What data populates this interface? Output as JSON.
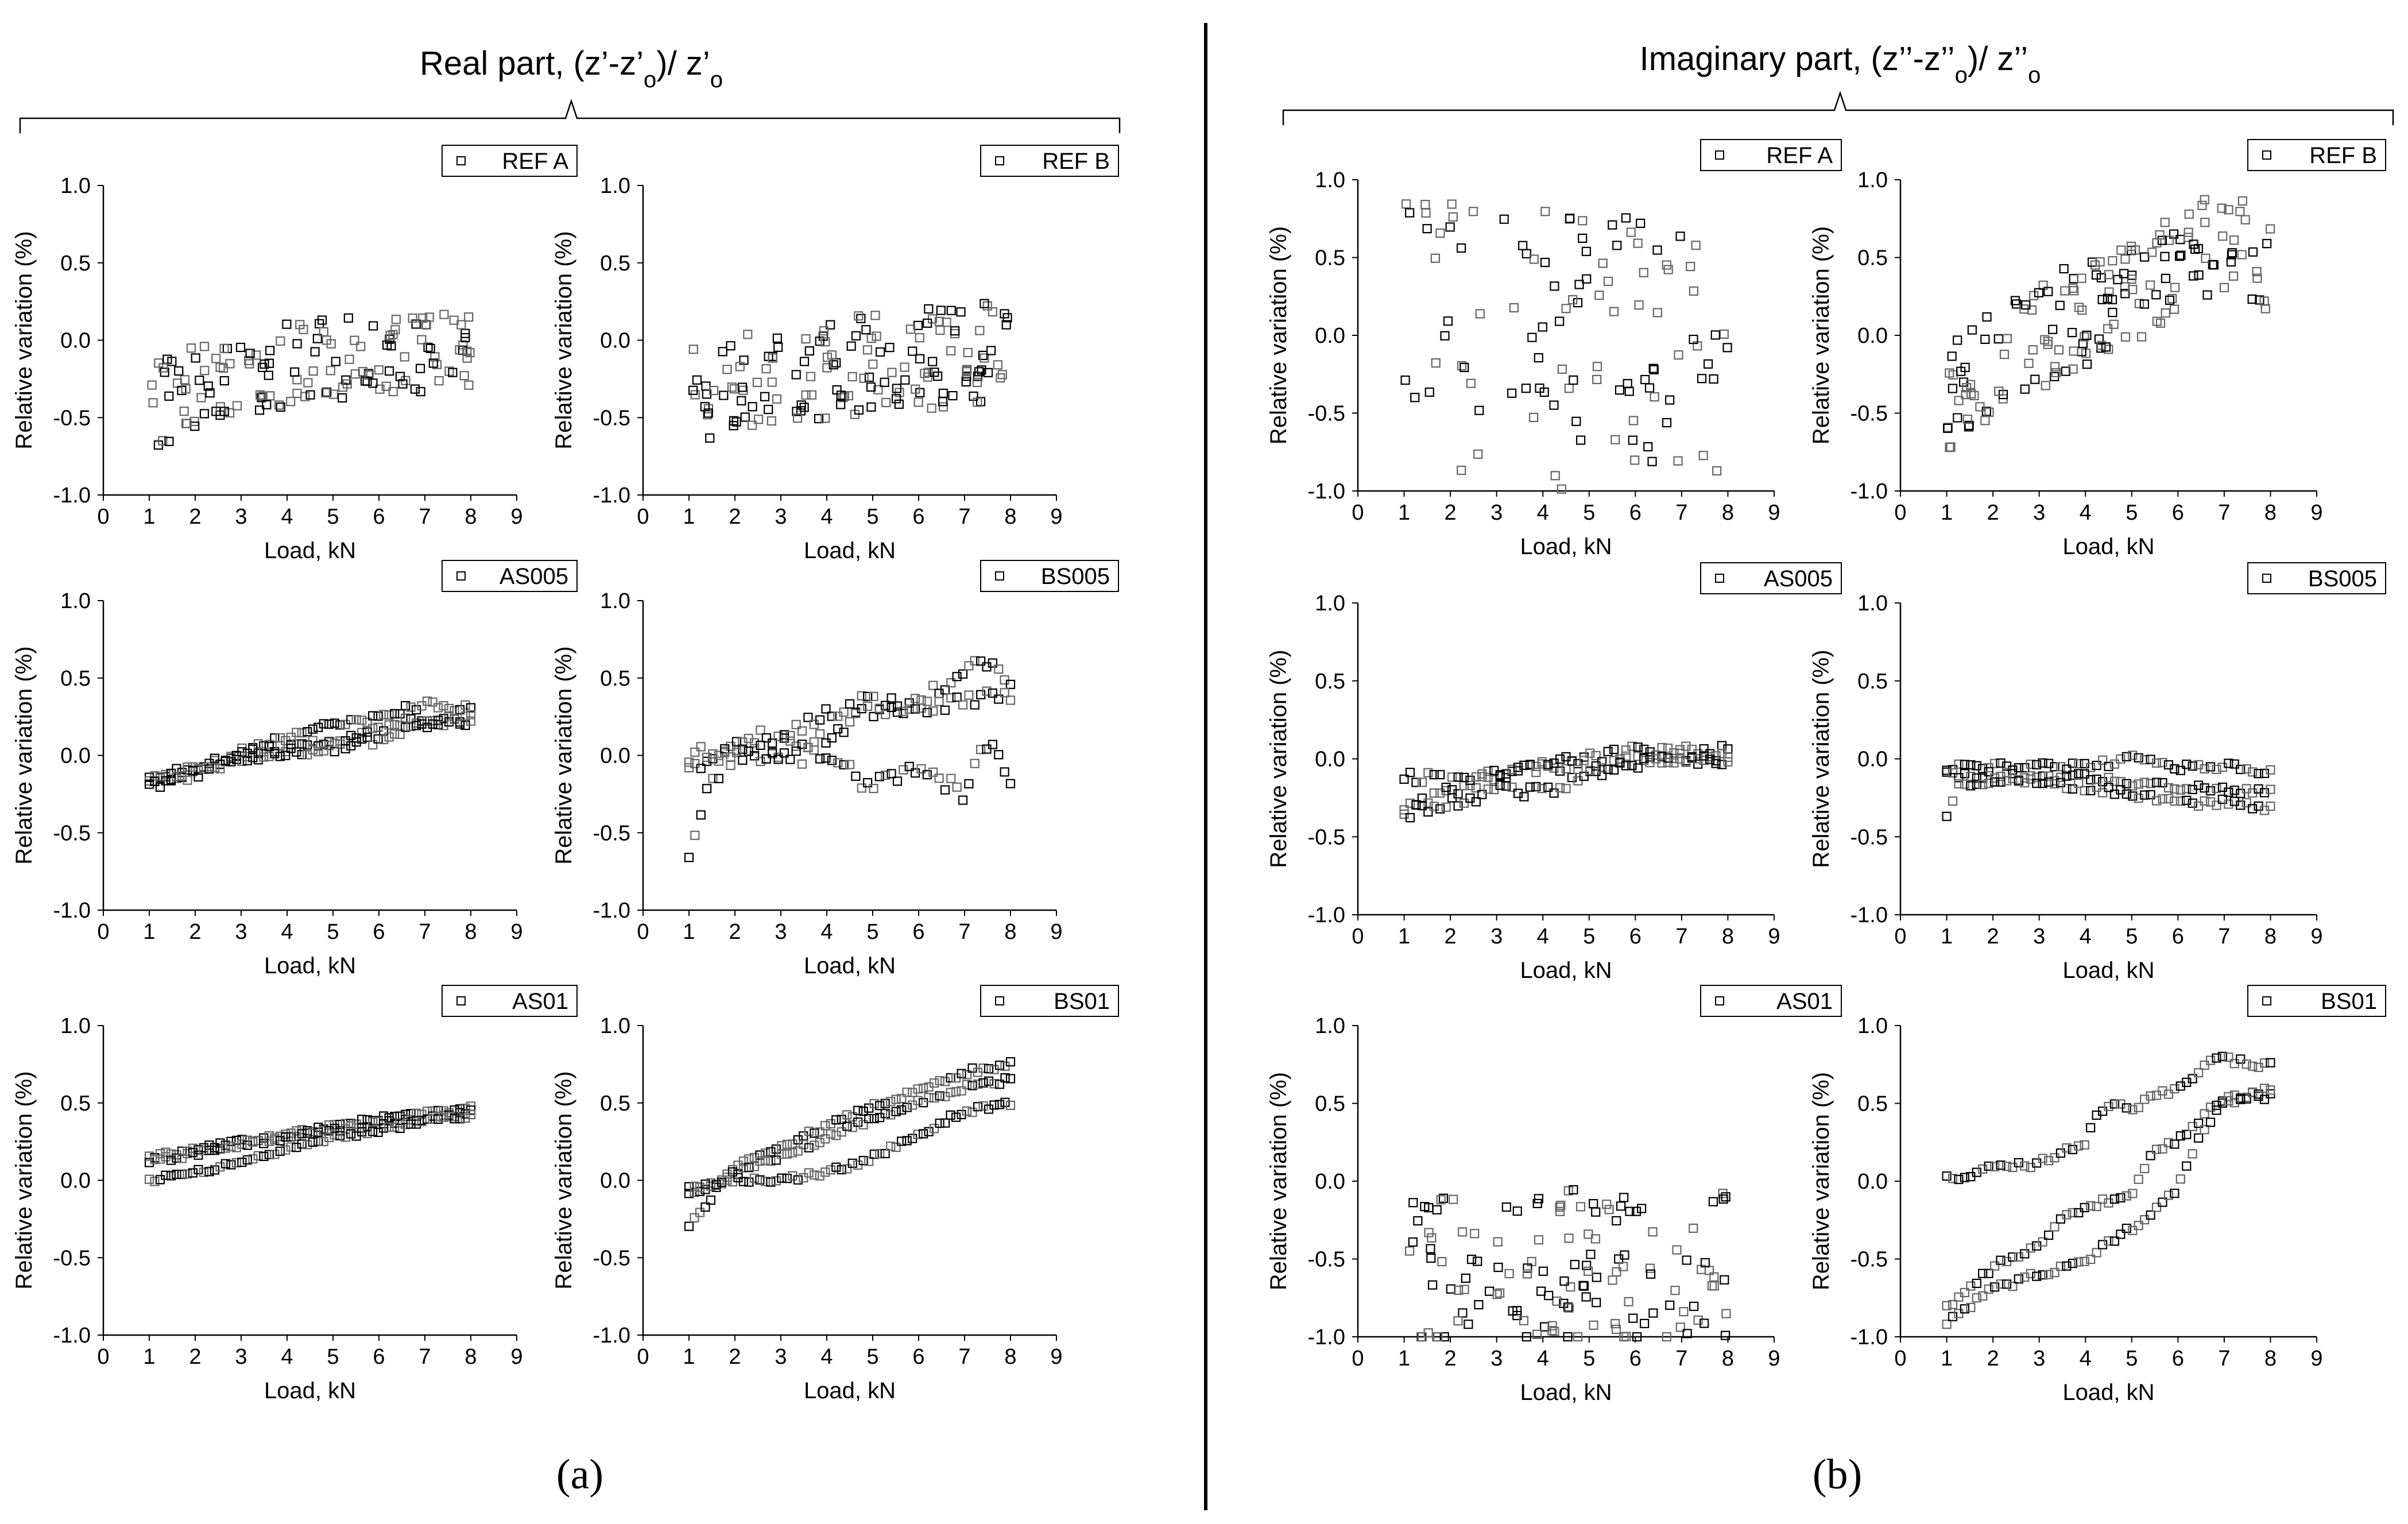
{
  "panels": [
    {
      "title": "Real part, (z’-z’",
      "title_sub": "o",
      "title_mid": ")/ z’",
      "title_sub2": "o",
      "label": "(a)"
    },
    {
      "title": "Imaginary part, (z’’-z’’",
      "title_sub": "o",
      "title_mid": ")/ z’’",
      "title_sub2": "o",
      "label": "(b)"
    }
  ],
  "chart_data": [
    {
      "type": "scatter",
      "panel": "a",
      "legend": "REF A",
      "xlabel": "Load, kN",
      "ylabel": "Relative variation (%)",
      "xlim": [
        0,
        9
      ],
      "ylim": [
        -1.0,
        1.0
      ],
      "xticks": [
        0,
        1,
        2,
        3,
        4,
        5,
        6,
        7,
        8,
        9
      ],
      "yticks": [
        -1.0,
        -0.5,
        0.0,
        0.5,
        1.0
      ],
      "pattern": "noisy",
      "trend_points": [
        [
          1,
          -0.45
        ],
        [
          2,
          -0.3
        ],
        [
          3,
          -0.2
        ],
        [
          4,
          -0.15
        ],
        [
          5,
          -0.12
        ],
        [
          6,
          -0.1
        ],
        [
          7,
          -0.08
        ],
        [
          8,
          -0.05
        ]
      ],
      "spread": 0.55,
      "n_points": 150
    },
    {
      "type": "scatter",
      "panel": "a",
      "legend": "REF B",
      "xlabel": "Load, kN",
      "ylabel": "Relative variation (%)",
      "xlim": [
        0,
        9
      ],
      "ylim": [
        -1.0,
        1.0
      ],
      "xticks": [
        0,
        1,
        2,
        3,
        4,
        5,
        6,
        7,
        8,
        9
      ],
      "yticks": [
        -1.0,
        -0.5,
        0.0,
        0.5,
        1.0
      ],
      "pattern": "noisy",
      "trend_points": [
        [
          1,
          -0.35
        ],
        [
          2,
          -0.28
        ],
        [
          3,
          -0.22
        ],
        [
          4,
          -0.18
        ],
        [
          5,
          -0.15
        ],
        [
          6,
          -0.12
        ],
        [
          7,
          -0.1
        ],
        [
          8,
          -0.05
        ]
      ],
      "spread": 0.65,
      "n_points": 160
    },
    {
      "type": "scatter",
      "panel": "a",
      "legend": "AS005",
      "xlabel": "Load, kN",
      "ylabel": "Relative variation (%)",
      "xlim": [
        0,
        9
      ],
      "ylim": [
        -1.0,
        1.0
      ],
      "xticks": [
        0,
        1,
        2,
        3,
        4,
        5,
        6,
        7,
        8,
        9
      ],
      "yticks": [
        -1.0,
        -0.5,
        0.0,
        0.5,
        1.0
      ],
      "pattern": "loops",
      "curves": [
        [
          [
            1,
            -0.17
          ],
          [
            2,
            -0.1
          ],
          [
            3,
            0.03
          ],
          [
            4,
            0.12
          ],
          [
            5,
            0.19
          ],
          [
            6,
            0.25
          ],
          [
            7,
            0.33
          ],
          [
            8,
            0.3
          ]
        ],
        [
          [
            1,
            -0.15
          ],
          [
            2,
            -0.08
          ],
          [
            3,
            0.0
          ],
          [
            4,
            0.05
          ],
          [
            5,
            0.1
          ],
          [
            6,
            0.17
          ],
          [
            7,
            0.25
          ],
          [
            8,
            0.22
          ]
        ],
        [
          [
            1,
            -0.2
          ],
          [
            2,
            -0.12
          ],
          [
            3,
            -0.03
          ],
          [
            4,
            0.02
          ],
          [
            5,
            0.05
          ],
          [
            6,
            0.1
          ],
          [
            7,
            0.2
          ],
          [
            8,
            0.25
          ]
        ]
      ],
      "n_points": 60,
      "jitter": 0.03
    },
    {
      "type": "scatter",
      "panel": "a",
      "legend": "BS005",
      "xlabel": "Load, kN",
      "ylabel": "Relative variation (%)",
      "xlim": [
        0,
        9
      ],
      "ylim": [
        -1.0,
        1.0
      ],
      "xticks": [
        0,
        1,
        2,
        3,
        4,
        5,
        6,
        7,
        8,
        9
      ],
      "yticks": [
        -1.0,
        -0.5,
        0.0,
        0.5,
        1.0
      ],
      "pattern": "loops",
      "curves": [
        [
          [
            1,
            -0.7
          ],
          [
            1.3,
            -0.3
          ],
          [
            2,
            0.1
          ],
          [
            3,
            0.12
          ],
          [
            4,
            0.25
          ],
          [
            5,
            0.35
          ],
          [
            6,
            0.32
          ],
          [
            7,
            0.55
          ],
          [
            7.2,
            0.65
          ],
          [
            8,
            0.45
          ]
        ],
        [
          [
            1,
            -0.1
          ],
          [
            2,
            0.0
          ],
          [
            3,
            0.05
          ],
          [
            4,
            0.1
          ],
          [
            4.5,
            0.2
          ],
          [
            5,
            0.3
          ],
          [
            6,
            0.3
          ],
          [
            7,
            0.35
          ],
          [
            8,
            0.4
          ]
        ],
        [
          [
            1,
            0.0
          ],
          [
            2,
            0.0
          ],
          [
            3,
            0.0
          ],
          [
            4,
            0.0
          ],
          [
            5,
            -0.2
          ],
          [
            6,
            -0.1
          ],
          [
            7,
            -0.25
          ],
          [
            7.5,
            0.1
          ],
          [
            8,
            -0.2
          ]
        ]
      ],
      "n_points": 55,
      "jitter": 0.06
    },
    {
      "type": "scatter",
      "panel": "a",
      "legend": "AS01",
      "xlabel": "Load, kN",
      "ylabel": "Relative variation (%)",
      "xlim": [
        0,
        9
      ],
      "ylim": [
        -1.0,
        1.0
      ],
      "xticks": [
        0,
        1,
        2,
        3,
        4,
        5,
        6,
        7,
        8,
        9
      ],
      "yticks": [
        -1.0,
        -0.5,
        0.0,
        0.5,
        1.0
      ],
      "pattern": "loops",
      "curves": [
        [
          [
            1,
            0.15
          ],
          [
            2,
            0.2
          ],
          [
            3,
            0.25
          ],
          [
            4,
            0.3
          ],
          [
            5,
            0.35
          ],
          [
            6,
            0.4
          ],
          [
            7,
            0.43
          ],
          [
            8,
            0.47
          ]
        ],
        [
          [
            1,
            0.12
          ],
          [
            2,
            0.17
          ],
          [
            3,
            0.22
          ],
          [
            4,
            0.28
          ],
          [
            5,
            0.32
          ],
          [
            6,
            0.37
          ],
          [
            7,
            0.4
          ],
          [
            8,
            0.44
          ]
        ],
        [
          [
            1,
            0.0
          ],
          [
            2,
            0.05
          ],
          [
            3,
            0.12
          ],
          [
            4,
            0.2
          ],
          [
            5,
            0.28
          ],
          [
            6,
            0.32
          ],
          [
            7,
            0.38
          ],
          [
            8,
            0.42
          ]
        ]
      ],
      "n_points": 60,
      "jitter": 0.015
    },
    {
      "type": "scatter",
      "panel": "a",
      "legend": "BS01",
      "xlabel": "Load, kN",
      "ylabel": "Relative variation (%)",
      "xlim": [
        0,
        9
      ],
      "ylim": [
        -1.0,
        1.0
      ],
      "xticks": [
        0,
        1,
        2,
        3,
        4,
        5,
        6,
        7,
        8,
        9
      ],
      "yticks": [
        -1.0,
        -0.5,
        0.0,
        0.5,
        1.0
      ],
      "pattern": "loops",
      "curves": [
        [
          [
            1,
            -0.3
          ],
          [
            1.5,
            -0.1
          ],
          [
            2,
            0.1
          ],
          [
            3,
            0.22
          ],
          [
            4,
            0.35
          ],
          [
            5,
            0.48
          ],
          [
            6,
            0.58
          ],
          [
            7,
            0.7
          ],
          [
            8,
            0.75
          ]
        ],
        [
          [
            1,
            -0.1
          ],
          [
            2,
            0.05
          ],
          [
            3,
            0.15
          ],
          [
            4,
            0.28
          ],
          [
            5,
            0.4
          ],
          [
            6,
            0.5
          ],
          [
            7,
            0.6
          ],
          [
            8,
            0.65
          ]
        ],
        [
          [
            1,
            -0.05
          ],
          [
            2,
            0.0
          ],
          [
            3,
            0.0
          ],
          [
            4,
            0.05
          ],
          [
            5,
            0.15
          ],
          [
            6,
            0.3
          ],
          [
            7,
            0.45
          ],
          [
            8,
            0.5
          ]
        ]
      ],
      "n_points": 60,
      "jitter": 0.02
    },
    {
      "type": "scatter",
      "panel": "b",
      "legend": "REF A",
      "xlabel": "Load, kN",
      "ylabel": "Relative variation (%)",
      "xlim": [
        0,
        9
      ],
      "ylim": [
        -1.0,
        1.0
      ],
      "xticks": [
        0,
        1,
        2,
        3,
        4,
        5,
        6,
        7,
        8,
        9
      ],
      "yticks": [
        -1.0,
        -0.5,
        0.0,
        0.5,
        1.0
      ],
      "pattern": "noisy",
      "trend_points": [
        [
          1,
          0.0
        ],
        [
          4,
          -0.1
        ],
        [
          8,
          0.0
        ]
      ],
      "spread": 1.8,
      "n_points": 110
    },
    {
      "type": "scatter",
      "panel": "b",
      "legend": "REF B",
      "xlabel": "Load, kN",
      "ylabel": "Relative variation (%)",
      "xlim": [
        0,
        9
      ],
      "ylim": [
        -1.0,
        1.0
      ],
      "xticks": [
        0,
        1,
        2,
        3,
        4,
        5,
        6,
        7,
        8,
        9
      ],
      "yticks": [
        -1.0,
        -0.5,
        0.0,
        0.5,
        1.0
      ],
      "pattern": "noisy",
      "trend_points": [
        [
          1,
          -0.4
        ],
        [
          2,
          -0.2
        ],
        [
          3,
          0.0
        ],
        [
          4,
          0.15
        ],
        [
          5,
          0.3
        ],
        [
          6,
          0.45
        ],
        [
          7,
          0.6
        ],
        [
          8,
          0.5
        ]
      ],
      "spread": 0.7,
      "n_points": 170
    },
    {
      "type": "scatter",
      "panel": "b",
      "legend": "AS005",
      "xlabel": "Load, kN",
      "ylabel": "Relative variation (%)",
      "xlim": [
        0,
        9
      ],
      "ylim": [
        -1.0,
        1.0
      ],
      "xticks": [
        0,
        1,
        2,
        3,
        4,
        5,
        6,
        7,
        8,
        9
      ],
      "yticks": [
        -1.0,
        -0.5,
        0.0,
        0.5,
        1.0
      ],
      "pattern": "loops",
      "curves": [
        [
          [
            1,
            -0.3
          ],
          [
            2,
            -0.2
          ],
          [
            3,
            -0.12
          ],
          [
            4,
            -0.05
          ],
          [
            5,
            0.0
          ],
          [
            6,
            0.05
          ],
          [
            7,
            0.08
          ],
          [
            8,
            0.05
          ]
        ],
        [
          [
            1,
            -0.35
          ],
          [
            2,
            -0.28
          ],
          [
            3,
            -0.2
          ],
          [
            4,
            -0.22
          ],
          [
            5,
            -0.1
          ],
          [
            6,
            0.0
          ],
          [
            7,
            0.02
          ],
          [
            8,
            -0.02
          ]
        ],
        [
          [
            1,
            -0.1
          ],
          [
            2,
            -0.15
          ],
          [
            3,
            -0.1
          ],
          [
            4,
            -0.05
          ],
          [
            5,
            -0.05
          ],
          [
            6,
            -0.02
          ],
          [
            7,
            0.0
          ],
          [
            8,
            0.0
          ]
        ]
      ],
      "n_points": 55,
      "jitter": 0.04
    },
    {
      "type": "scatter",
      "panel": "b",
      "legend": "BS005",
      "xlabel": "Load, kN",
      "ylabel": "Relative variation (%)",
      "xlim": [
        0,
        9
      ],
      "ylim": [
        -1.0,
        1.0
      ],
      "xticks": [
        0,
        1,
        2,
        3,
        4,
        5,
        6,
        7,
        8,
        9
      ],
      "yticks": [
        -1.0,
        -0.5,
        0.0,
        0.5,
        1.0
      ],
      "pattern": "loops",
      "curves": [
        [
          [
            1,
            -0.05
          ],
          [
            2,
            -0.05
          ],
          [
            3,
            -0.05
          ],
          [
            4,
            -0.05
          ],
          [
            5,
            0.0
          ],
          [
            6,
            -0.05
          ],
          [
            7,
            -0.05
          ],
          [
            8,
            -0.08
          ]
        ],
        [
          [
            1,
            -0.1
          ],
          [
            2,
            -0.1
          ],
          [
            3,
            -0.12
          ],
          [
            4,
            -0.12
          ],
          [
            5,
            -0.15
          ],
          [
            6,
            -0.18
          ],
          [
            7,
            -0.2
          ],
          [
            8,
            -0.2
          ]
        ],
        [
          [
            1,
            -0.35
          ],
          [
            1.3,
            -0.15
          ],
          [
            2,
            -0.15
          ],
          [
            3,
            -0.15
          ],
          [
            4,
            -0.18
          ],
          [
            5,
            -0.22
          ],
          [
            6,
            -0.28
          ],
          [
            7,
            -0.28
          ],
          [
            8,
            -0.32
          ]
        ]
      ],
      "n_points": 55,
      "jitter": 0.025
    },
    {
      "type": "scatter",
      "panel": "b",
      "legend": "AS01",
      "xlabel": "Load, kN",
      "ylabel": "Relative variation (%)",
      "xlim": [
        0,
        9
      ],
      "ylim": [
        -1.0,
        1.0
      ],
      "xticks": [
        0,
        1,
        2,
        3,
        4,
        5,
        6,
        7,
        8,
        9
      ],
      "yticks": [
        -1.0,
        -0.5,
        0.0,
        0.5,
        1.0
      ],
      "pattern": "noisy",
      "trend_points": [
        [
          1,
          -0.6
        ],
        [
          4,
          -0.55
        ],
        [
          8,
          -0.5
        ]
      ],
      "spread": 1.0,
      "n_points": 140
    },
    {
      "type": "scatter",
      "panel": "b",
      "legend": "BS01",
      "xlabel": "Load, kN",
      "ylabel": "Relative variation (%)",
      "xlim": [
        0,
        9
      ],
      "ylim": [
        -1.0,
        1.0
      ],
      "xticks": [
        0,
        1,
        2,
        3,
        4,
        5,
        6,
        7,
        8,
        9
      ],
      "yticks": [
        -1.0,
        -0.5,
        0.0,
        0.5,
        1.0
      ],
      "pattern": "loops",
      "curves": [
        [
          [
            1,
            0.02
          ],
          [
            2,
            0.08
          ],
          [
            3,
            0.12
          ],
          [
            3.5,
            0.2
          ],
          [
            4,
            0.25
          ],
          [
            4.3,
            0.45
          ],
          [
            4.5,
            0.5
          ],
          [
            5,
            0.48
          ],
          [
            6,
            0.6
          ],
          [
            6.8,
            0.8
          ],
          [
            7.5,
            0.75
          ],
          [
            8,
            0.75
          ]
        ],
        [
          [
            1,
            -0.8
          ],
          [
            2,
            -0.55
          ],
          [
            3,
            -0.4
          ],
          [
            3.5,
            -0.25
          ],
          [
            4,
            -0.15
          ],
          [
            5,
            -0.1
          ],
          [
            5.5,
            0.2
          ],
          [
            6,
            0.25
          ],
          [
            7,
            0.55
          ],
          [
            8,
            0.55
          ]
        ],
        [
          [
            1,
            -0.9
          ],
          [
            2,
            -0.7
          ],
          [
            3,
            -0.6
          ],
          [
            4,
            -0.5
          ],
          [
            5,
            -0.3
          ],
          [
            6,
            -0.05
          ],
          [
            6.5,
            0.3
          ],
          [
            7,
            0.5
          ],
          [
            8,
            0.6
          ]
        ]
      ],
      "n_points": 55,
      "jitter": 0.025
    }
  ]
}
